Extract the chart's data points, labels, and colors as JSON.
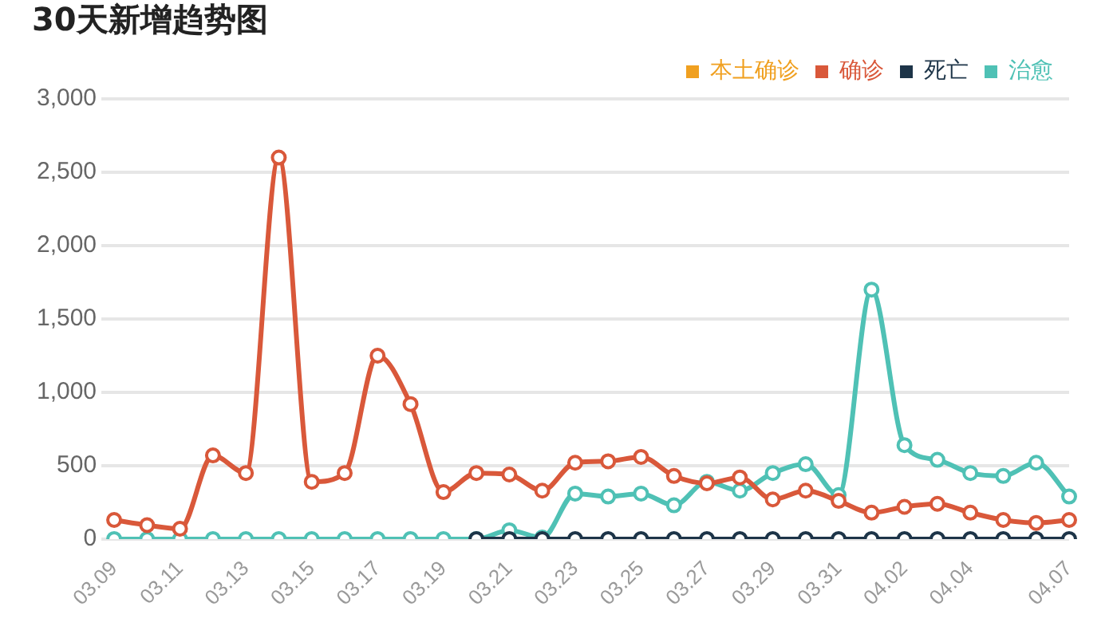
{
  "chart_data": {
    "type": "line",
    "title": "30天新增趋势图",
    "categories": [
      "03.09",
      null,
      "03.11",
      null,
      "03.13",
      null,
      "03.15",
      null,
      "03.17",
      null,
      "03.19",
      null,
      "03.21",
      null,
      "03.23",
      null,
      "03.25",
      null,
      "03.27",
      null,
      "03.29",
      null,
      "03.31",
      null,
      "04.02",
      null,
      "04.04",
      null,
      null,
      "04.07"
    ],
    "series": [
      {
        "name": "本土确诊",
        "color": "#f0a020",
        "values": [
          null,
          null,
          null,
          null,
          null,
          null,
          null,
          null,
          null,
          null,
          null,
          null,
          null,
          null,
          null,
          null,
          null,
          null,
          null,
          null,
          null,
          null,
          null,
          null,
          null,
          null,
          null,
          null,
          null,
          null
        ]
      },
      {
        "name": "确诊",
        "color": "#d9583a",
        "values": [
          130,
          95,
          70,
          570,
          450,
          2600,
          390,
          450,
          1250,
          920,
          320,
          450,
          440,
          330,
          520,
          530,
          560,
          430,
          380,
          420,
          270,
          330,
          260,
          180,
          220,
          240,
          180,
          130,
          110,
          130
        ]
      },
      {
        "name": "死亡",
        "color": "#1d3448",
        "values": [
          null,
          null,
          null,
          null,
          null,
          null,
          null,
          null,
          null,
          null,
          null,
          0,
          0,
          0,
          0,
          0,
          0,
          0,
          0,
          0,
          0,
          0,
          0,
          0,
          0,
          0,
          0,
          0,
          0,
          0
        ]
      },
      {
        "name": "治愈",
        "color": "#4fc1b5",
        "values": [
          0,
          0,
          0,
          0,
          0,
          0,
          0,
          0,
          0,
          0,
          0,
          0,
          60,
          10,
          310,
          290,
          310,
          230,
          390,
          330,
          450,
          510,
          300,
          1700,
          640,
          540,
          450,
          430,
          520,
          290
        ]
      }
    ],
    "ylim": [
      0,
      3000
    ],
    "yticks": [
      0,
      500,
      {
        "value": 1000,
        "label": "1,000"
      },
      {
        "value": 1500,
        "label": "1,500"
      },
      {
        "value": 2000,
        "label": "2,000"
      },
      {
        "value": 2500,
        "label": "2,500"
      },
      {
        "value": 3000,
        "label": "3,000"
      }
    ],
    "grid": "y",
    "legend": "top right",
    "marker": "circle",
    "line_style": "solid"
  }
}
